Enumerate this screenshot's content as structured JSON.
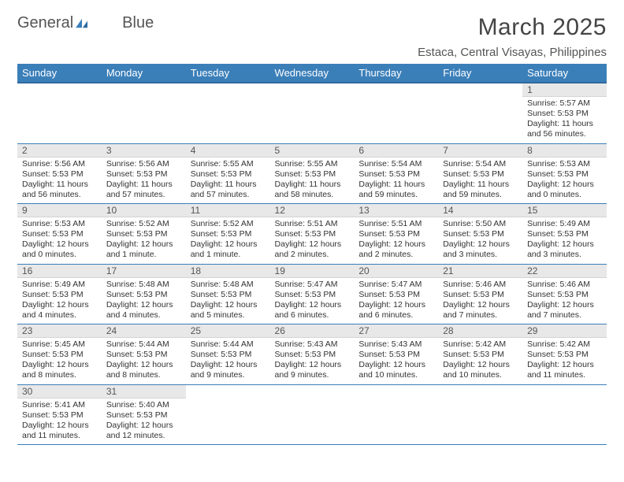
{
  "logo": {
    "text1": "General",
    "text2": "Blue",
    "text_color": "#555555",
    "accent_color": "#3b7fb9"
  },
  "header": {
    "month_title": "March 2025",
    "location": "Estaca, Central Visayas, Philippines"
  },
  "colors": {
    "header_bg": "#3b7fb9",
    "header_border": "#2f6a9e",
    "row_border": "#3b7fb9",
    "daynum_bg": "#e8e8e8",
    "text": "#333333"
  },
  "weekdays": [
    "Sunday",
    "Monday",
    "Tuesday",
    "Wednesday",
    "Thursday",
    "Friday",
    "Saturday"
  ],
  "weeks": [
    [
      null,
      null,
      null,
      null,
      null,
      null,
      {
        "n": "1",
        "sunrise": "Sunrise: 5:57 AM",
        "sunset": "Sunset: 5:53 PM",
        "daylight": "Daylight: 11 hours and 56 minutes."
      }
    ],
    [
      {
        "n": "2",
        "sunrise": "Sunrise: 5:56 AM",
        "sunset": "Sunset: 5:53 PM",
        "daylight": "Daylight: 11 hours and 56 minutes."
      },
      {
        "n": "3",
        "sunrise": "Sunrise: 5:56 AM",
        "sunset": "Sunset: 5:53 PM",
        "daylight": "Daylight: 11 hours and 57 minutes."
      },
      {
        "n": "4",
        "sunrise": "Sunrise: 5:55 AM",
        "sunset": "Sunset: 5:53 PM",
        "daylight": "Daylight: 11 hours and 57 minutes."
      },
      {
        "n": "5",
        "sunrise": "Sunrise: 5:55 AM",
        "sunset": "Sunset: 5:53 PM",
        "daylight": "Daylight: 11 hours and 58 minutes."
      },
      {
        "n": "6",
        "sunrise": "Sunrise: 5:54 AM",
        "sunset": "Sunset: 5:53 PM",
        "daylight": "Daylight: 11 hours and 59 minutes."
      },
      {
        "n": "7",
        "sunrise": "Sunrise: 5:54 AM",
        "sunset": "Sunset: 5:53 PM",
        "daylight": "Daylight: 11 hours and 59 minutes."
      },
      {
        "n": "8",
        "sunrise": "Sunrise: 5:53 AM",
        "sunset": "Sunset: 5:53 PM",
        "daylight": "Daylight: 12 hours and 0 minutes."
      }
    ],
    [
      {
        "n": "9",
        "sunrise": "Sunrise: 5:53 AM",
        "sunset": "Sunset: 5:53 PM",
        "daylight": "Daylight: 12 hours and 0 minutes."
      },
      {
        "n": "10",
        "sunrise": "Sunrise: 5:52 AM",
        "sunset": "Sunset: 5:53 PM",
        "daylight": "Daylight: 12 hours and 1 minute."
      },
      {
        "n": "11",
        "sunrise": "Sunrise: 5:52 AM",
        "sunset": "Sunset: 5:53 PM",
        "daylight": "Daylight: 12 hours and 1 minute."
      },
      {
        "n": "12",
        "sunrise": "Sunrise: 5:51 AM",
        "sunset": "Sunset: 5:53 PM",
        "daylight": "Daylight: 12 hours and 2 minutes."
      },
      {
        "n": "13",
        "sunrise": "Sunrise: 5:51 AM",
        "sunset": "Sunset: 5:53 PM",
        "daylight": "Daylight: 12 hours and 2 minutes."
      },
      {
        "n": "14",
        "sunrise": "Sunrise: 5:50 AM",
        "sunset": "Sunset: 5:53 PM",
        "daylight": "Daylight: 12 hours and 3 minutes."
      },
      {
        "n": "15",
        "sunrise": "Sunrise: 5:49 AM",
        "sunset": "Sunset: 5:53 PM",
        "daylight": "Daylight: 12 hours and 3 minutes."
      }
    ],
    [
      {
        "n": "16",
        "sunrise": "Sunrise: 5:49 AM",
        "sunset": "Sunset: 5:53 PM",
        "daylight": "Daylight: 12 hours and 4 minutes."
      },
      {
        "n": "17",
        "sunrise": "Sunrise: 5:48 AM",
        "sunset": "Sunset: 5:53 PM",
        "daylight": "Daylight: 12 hours and 4 minutes."
      },
      {
        "n": "18",
        "sunrise": "Sunrise: 5:48 AM",
        "sunset": "Sunset: 5:53 PM",
        "daylight": "Daylight: 12 hours and 5 minutes."
      },
      {
        "n": "19",
        "sunrise": "Sunrise: 5:47 AM",
        "sunset": "Sunset: 5:53 PM",
        "daylight": "Daylight: 12 hours and 6 minutes."
      },
      {
        "n": "20",
        "sunrise": "Sunrise: 5:47 AM",
        "sunset": "Sunset: 5:53 PM",
        "daylight": "Daylight: 12 hours and 6 minutes."
      },
      {
        "n": "21",
        "sunrise": "Sunrise: 5:46 AM",
        "sunset": "Sunset: 5:53 PM",
        "daylight": "Daylight: 12 hours and 7 minutes."
      },
      {
        "n": "22",
        "sunrise": "Sunrise: 5:46 AM",
        "sunset": "Sunset: 5:53 PM",
        "daylight": "Daylight: 12 hours and 7 minutes."
      }
    ],
    [
      {
        "n": "23",
        "sunrise": "Sunrise: 5:45 AM",
        "sunset": "Sunset: 5:53 PM",
        "daylight": "Daylight: 12 hours and 8 minutes."
      },
      {
        "n": "24",
        "sunrise": "Sunrise: 5:44 AM",
        "sunset": "Sunset: 5:53 PM",
        "daylight": "Daylight: 12 hours and 8 minutes."
      },
      {
        "n": "25",
        "sunrise": "Sunrise: 5:44 AM",
        "sunset": "Sunset: 5:53 PM",
        "daylight": "Daylight: 12 hours and 9 minutes."
      },
      {
        "n": "26",
        "sunrise": "Sunrise: 5:43 AM",
        "sunset": "Sunset: 5:53 PM",
        "daylight": "Daylight: 12 hours and 9 minutes."
      },
      {
        "n": "27",
        "sunrise": "Sunrise: 5:43 AM",
        "sunset": "Sunset: 5:53 PM",
        "daylight": "Daylight: 12 hours and 10 minutes."
      },
      {
        "n": "28",
        "sunrise": "Sunrise: 5:42 AM",
        "sunset": "Sunset: 5:53 PM",
        "daylight": "Daylight: 12 hours and 10 minutes."
      },
      {
        "n": "29",
        "sunrise": "Sunrise: 5:42 AM",
        "sunset": "Sunset: 5:53 PM",
        "daylight": "Daylight: 12 hours and 11 minutes."
      }
    ],
    [
      {
        "n": "30",
        "sunrise": "Sunrise: 5:41 AM",
        "sunset": "Sunset: 5:53 PM",
        "daylight": "Daylight: 12 hours and 11 minutes."
      },
      {
        "n": "31",
        "sunrise": "Sunrise: 5:40 AM",
        "sunset": "Sunset: 5:53 PM",
        "daylight": "Daylight: 12 hours and 12 minutes."
      },
      null,
      null,
      null,
      null,
      null
    ]
  ]
}
